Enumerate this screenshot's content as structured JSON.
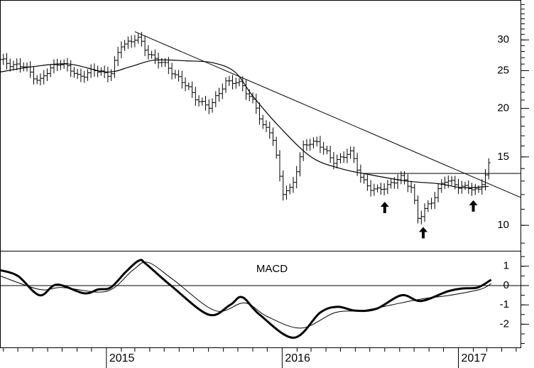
{
  "chart_data": [
    {
      "type": "ohlc",
      "panel": "price",
      "yscale": "log",
      "ylim": [
        8.6,
        38
      ],
      "yticks": [
        "30",
        "25",
        "20",
        "15",
        "10"
      ],
      "yticks_values": [
        30,
        25,
        20,
        15,
        10
      ],
      "xlabels": [
        "2015",
        "2016",
        "2017"
      ],
      "x_range": [
        "2014-05-25",
        "2017-05-10"
      ],
      "bars": {
        "interval_days": 7,
        "waypoints": [
          [
            "2014-05-25",
            26.5
          ],
          [
            "2014-07-15",
            25.5
          ],
          [
            "2014-08-15",
            23.5
          ],
          [
            "2014-09-25",
            26.5
          ],
          [
            "2014-11-01",
            24.2
          ],
          [
            "2014-12-10",
            25.0
          ],
          [
            "2015-01-10",
            24.5
          ],
          [
            "2015-02-01",
            29.0
          ],
          [
            "2015-03-05",
            30.5
          ],
          [
            "2015-03-25",
            28.0
          ],
          [
            "2015-04-20",
            26.5
          ],
          [
            "2015-06-01",
            24.0
          ],
          [
            "2015-07-01",
            21.5
          ],
          [
            "2015-08-05",
            20.0
          ],
          [
            "2015-09-05",
            23.5
          ],
          [
            "2015-10-10",
            23.0
          ],
          [
            "2015-11-05",
            20.5
          ],
          [
            "2015-11-20",
            18.0
          ],
          [
            "2015-12-10",
            17.5
          ],
          [
            "2016-01-01",
            12.0
          ],
          [
            "2016-01-20",
            12.5
          ],
          [
            "2016-02-15",
            16.0
          ],
          [
            "2016-03-15",
            16.5
          ],
          [
            "2016-04-15",
            14.5
          ],
          [
            "2016-05-20",
            15.5
          ],
          [
            "2016-06-10",
            13.5
          ],
          [
            "2016-06-30",
            12.5
          ],
          [
            "2016-07-15",
            12.2
          ],
          [
            "2016-08-10",
            12.8
          ],
          [
            "2016-09-05",
            13.2
          ],
          [
            "2016-09-25",
            12.6
          ],
          [
            "2016-10-10",
            10.3
          ],
          [
            "2016-11-05",
            11.5
          ],
          [
            "2016-12-01",
            13.0
          ],
          [
            "2016-12-25",
            12.8
          ],
          [
            "2017-01-25",
            12.4
          ],
          [
            "2017-02-10",
            12.2
          ],
          [
            "2017-02-25",
            13.5
          ],
          [
            "2017-03-10",
            14.8
          ]
        ]
      },
      "moving_average": [
        [
          "2014-05-25",
          24.8
        ],
        [
          "2014-08-01",
          25.6
        ],
        [
          "2014-10-15",
          26.0
        ],
        [
          "2015-01-01",
          24.8
        ],
        [
          "2015-02-20",
          25.6
        ],
        [
          "2015-04-10",
          26.6
        ],
        [
          "2015-06-15",
          26.5
        ],
        [
          "2015-08-10",
          26.2
        ],
        [
          "2015-09-25",
          24.8
        ],
        [
          "2015-11-01",
          21.5
        ],
        [
          "2015-12-25",
          18.0
        ],
        [
          "2016-03-01",
          15.0
        ],
        [
          "2016-05-01",
          14.0
        ],
        [
          "2016-07-01",
          13.5
        ],
        [
          "2016-09-15",
          13.0
        ],
        [
          "2016-11-20",
          12.8
        ],
        [
          "2017-01-10",
          12.5
        ],
        [
          "2017-03-05",
          12.6
        ]
      ],
      "trendline": {
        "start": [
          "2015-03-01",
          31.5
        ],
        "end": [
          "2017-05-10",
          11.8
        ]
      },
      "resistance": {
        "start": [
          "2016-06-15",
          13.6
        ],
        "end": [
          "2017-05-10",
          13.6
        ],
        "value": 13.6
      },
      "arrows": [
        {
          "date": "2016-08-01",
          "value": 11.5
        },
        {
          "date": "2016-10-20",
          "value": 9.9
        },
        {
          "date": "2017-02-01",
          "value": 11.6
        }
      ]
    },
    {
      "type": "line",
      "panel": "indicator",
      "title": "MACD",
      "ylim": [
        -3.2,
        1.8
      ],
      "yticks": [
        "1",
        "0",
        "-1",
        "-2"
      ],
      "yticks_values": [
        1,
        0,
        -1,
        -2
      ],
      "series": [
        {
          "style": "thick",
          "points": [
            [
              "2014-05-25",
              0.8
            ],
            [
              "2014-07-01",
              0.5
            ],
            [
              "2014-08-15",
              -0.5
            ],
            [
              "2014-09-20",
              0.05
            ],
            [
              "2014-11-15",
              -0.4
            ],
            [
              "2014-12-15",
              -0.2
            ],
            [
              "2015-01-10",
              -0.1
            ],
            [
              "2015-02-10",
              0.7
            ],
            [
              "2015-03-10",
              1.3
            ],
            [
              "2015-03-25",
              1.1
            ],
            [
              "2015-05-15",
              0.0
            ],
            [
              "2015-08-01",
              -1.5
            ],
            [
              "2015-09-15",
              -1.0
            ],
            [
              "2015-10-10",
              -0.6
            ],
            [
              "2015-11-15",
              -1.5
            ],
            [
              "2016-01-25",
              -2.7
            ],
            [
              "2016-03-20",
              -1.4
            ],
            [
              "2016-04-25",
              -1.1
            ],
            [
              "2016-06-01",
              -1.3
            ],
            [
              "2016-07-15",
              -1.2
            ],
            [
              "2016-09-05",
              -0.5
            ],
            [
              "2016-10-15",
              -0.8
            ],
            [
              "2016-12-10",
              -0.3
            ],
            [
              "2017-01-10",
              -0.15
            ],
            [
              "2017-02-10",
              -0.1
            ],
            [
              "2017-03-10",
              0.3
            ]
          ]
        },
        {
          "style": "thin",
          "points": [
            [
              "2014-05-25",
              0.5
            ],
            [
              "2014-08-15",
              -0.2
            ],
            [
              "2014-10-01",
              -0.1
            ],
            [
              "2015-01-01",
              -0.3
            ],
            [
              "2015-02-25",
              0.8
            ],
            [
              "2015-03-28",
              1.2
            ],
            [
              "2015-05-20",
              0.3
            ],
            [
              "2015-08-15",
              -1.3
            ],
            [
              "2015-10-15",
              -0.9
            ],
            [
              "2015-12-01",
              -1.6
            ],
            [
              "2016-02-10",
              -2.2
            ],
            [
              "2016-04-20",
              -1.4
            ],
            [
              "2016-06-15",
              -1.3
            ],
            [
              "2016-08-15",
              -1.0
            ],
            [
              "2016-10-15",
              -0.7
            ],
            [
              "2016-12-15",
              -0.5
            ],
            [
              "2017-02-15",
              -0.2
            ],
            [
              "2017-03-10",
              0.1
            ]
          ]
        }
      ],
      "zero_line": 0
    }
  ]
}
